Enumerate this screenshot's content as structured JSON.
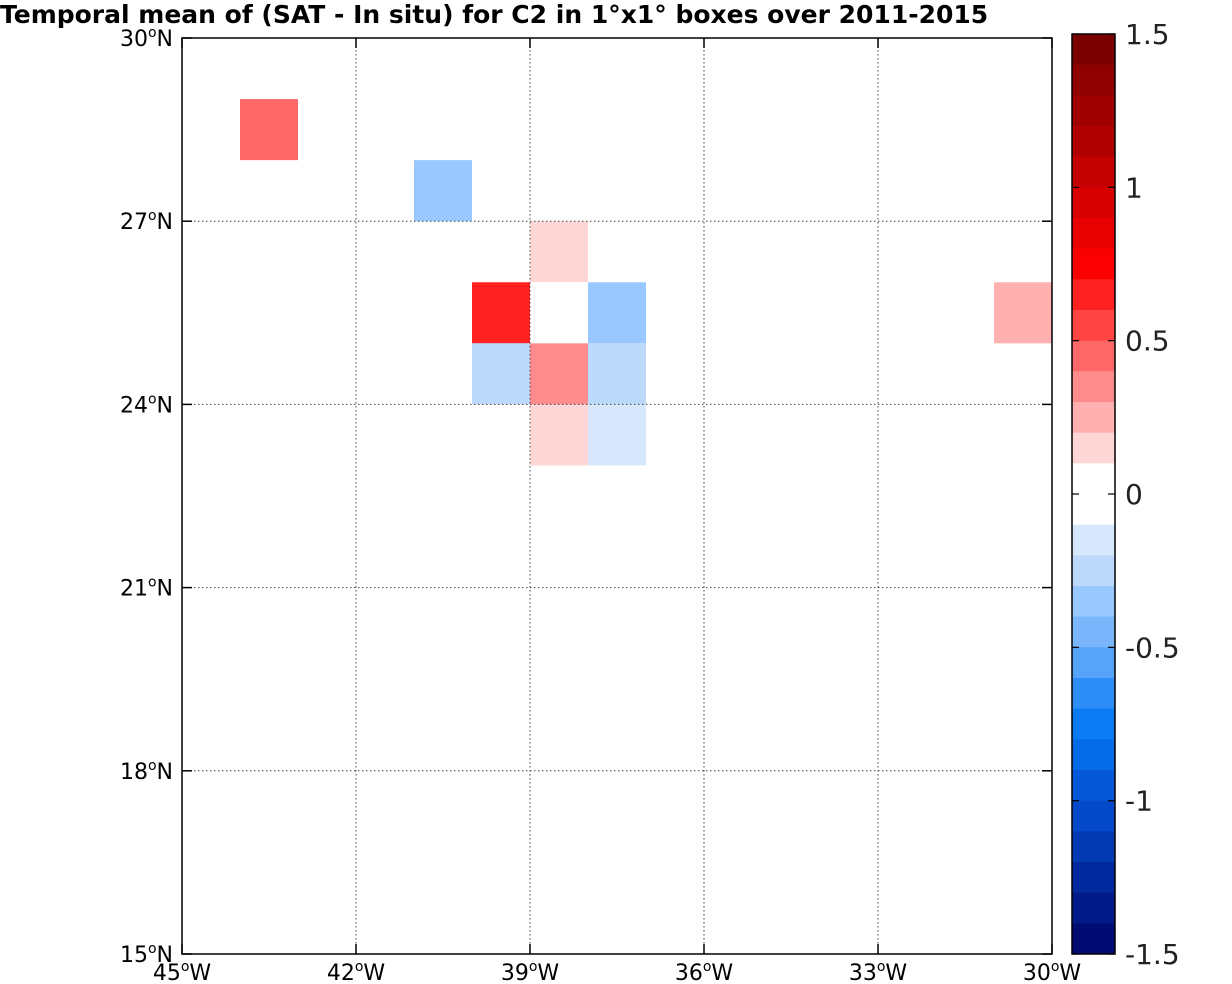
{
  "title": "Temporal mean of (SAT - In situ) for C2 in 1°x1° boxes over 2011-2015",
  "map": {
    "lon_range": [
      -45,
      -30
    ],
    "lat_range": [
      15,
      30
    ],
    "lon_ticks": [
      {
        "value": -45,
        "num": "45",
        "sup": "o",
        "hemi": "W"
      },
      {
        "value": -42,
        "num": "42",
        "sup": "o",
        "hemi": "W"
      },
      {
        "value": -39,
        "num": "39",
        "sup": "o",
        "hemi": "W"
      },
      {
        "value": -36,
        "num": "36",
        "sup": "o",
        "hemi": "W"
      },
      {
        "value": -33,
        "num": "33",
        "sup": "o",
        "hemi": "W"
      },
      {
        "value": -30,
        "num": "30",
        "sup": "o",
        "hemi": "W"
      }
    ],
    "lat_ticks": [
      {
        "value": 15,
        "num": "15",
        "sup": "o",
        "hemi": "N"
      },
      {
        "value": 18,
        "num": "18",
        "sup": "o",
        "hemi": "N"
      },
      {
        "value": 21,
        "num": "21",
        "sup": "o",
        "hemi": "N"
      },
      {
        "value": 24,
        "num": "24",
        "sup": "o",
        "hemi": "N"
      },
      {
        "value": 27,
        "num": "27",
        "sup": "o",
        "hemi": "N"
      },
      {
        "value": 30,
        "num": "30",
        "sup": "o",
        "hemi": "N"
      }
    ],
    "grid": "dotted",
    "boxes": [
      {
        "lon": -44,
        "lat": 28,
        "value": 0.45
      },
      {
        "lon": -41,
        "lat": 27,
        "value": -0.35
      },
      {
        "lon": -39,
        "lat": 26,
        "value": 0.15
      },
      {
        "lon": -40,
        "lat": 25,
        "value": 0.65
      },
      {
        "lon": -39,
        "lat": 25,
        "value": 0.0
      },
      {
        "lon": -38,
        "lat": 25,
        "value": -0.35
      },
      {
        "lon": -40,
        "lat": 24,
        "value": -0.25
      },
      {
        "lon": -39,
        "lat": 24,
        "value": 0.35
      },
      {
        "lon": -38,
        "lat": 24,
        "value": -0.25
      },
      {
        "lon": -39,
        "lat": 23,
        "value": 0.15
      },
      {
        "lon": -38,
        "lat": 23,
        "value": -0.15
      },
      {
        "lon": -31,
        "lat": 25,
        "value": 0.25
      }
    ]
  },
  "colorbar": {
    "range": [
      -1.5,
      1.5
    ],
    "ticks": [
      {
        "value": 1.5,
        "label": "1.5"
      },
      {
        "value": 1,
        "label": "1"
      },
      {
        "value": 0.5,
        "label": "0.5"
      },
      {
        "value": 0,
        "label": "0"
      },
      {
        "value": -0.5,
        "label": "-0.5"
      },
      {
        "value": -1,
        "label": "-1"
      },
      {
        "value": -1.5,
        "label": "-1.5"
      }
    ],
    "colors_top_to_bottom": [
      "#7a0000",
      "#8f0000",
      "#a00000",
      "#b00000",
      "#c40000",
      "#d60000",
      "#e80000",
      "#fa0000",
      "#ff2020",
      "#ff4444",
      "#ff6868",
      "#ff8c8c",
      "#ffb0b0",
      "#ffd6d6",
      "#ffffff",
      "#ffffff",
      "#d8e8fc",
      "#bcd8fa",
      "#99c7ff",
      "#7ab6fc",
      "#55a4fa",
      "#2e8ef7",
      "#0a7af5",
      "#056ae8",
      "#0558d8",
      "#0449c9",
      "#0339b3",
      "#02289e",
      "#011a87",
      "#000b73"
    ]
  }
}
